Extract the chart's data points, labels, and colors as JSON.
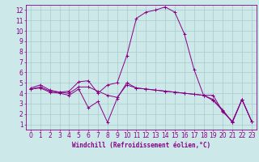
{
  "xlabel": "Windchill (Refroidissement éolien,°C)",
  "bg_color": "#cce8e8",
  "line_color": "#880088",
  "grid_color": "#aacccc",
  "xlim": [
    -0.5,
    23.5
  ],
  "ylim": [
    0.5,
    12.5
  ],
  "xticks": [
    0,
    1,
    2,
    3,
    4,
    5,
    6,
    7,
    8,
    9,
    10,
    11,
    12,
    13,
    14,
    15,
    16,
    17,
    18,
    19,
    20,
    21,
    22,
    23
  ],
  "yticks": [
    1,
    2,
    3,
    4,
    5,
    6,
    7,
    8,
    9,
    10,
    11,
    12
  ],
  "line1_x": [
    0,
    1,
    2,
    3,
    4,
    5,
    6,
    7,
    8,
    9,
    10,
    11,
    12,
    13,
    14,
    15,
    16,
    17,
    18,
    19,
    20,
    21,
    22,
    23
  ],
  "line1_y": [
    4.5,
    4.8,
    4.3,
    4.1,
    4.2,
    5.1,
    5.2,
    4.0,
    4.8,
    5.0,
    7.6,
    11.2,
    11.8,
    12.0,
    12.3,
    11.8,
    9.7,
    6.3,
    3.8,
    3.8,
    2.2,
    1.3,
    3.4,
    1.3
  ],
  "line2_x": [
    0,
    1,
    2,
    3,
    4,
    5,
    6,
    7,
    8,
    9,
    10,
    11,
    12,
    13,
    14,
    15,
    16,
    17,
    18,
    19,
    20,
    21,
    22,
    23
  ],
  "line2_y": [
    4.4,
    4.6,
    4.2,
    4.1,
    4.0,
    4.6,
    4.6,
    4.2,
    3.8,
    3.6,
    4.8,
    4.5,
    4.4,
    4.3,
    4.2,
    4.1,
    4.0,
    3.9,
    3.8,
    3.4,
    2.4,
    1.2,
    3.4,
    1.3
  ],
  "line3_x": [
    0,
    1,
    2,
    3,
    4,
    5,
    6,
    7,
    8,
    9,
    10,
    11,
    12,
    13,
    14,
    15,
    16,
    17,
    18,
    19,
    20,
    21,
    22,
    23
  ],
  "line3_y": [
    4.4,
    4.5,
    4.1,
    4.0,
    3.8,
    4.4,
    2.6,
    3.2,
    1.2,
    3.5,
    5.0,
    4.5,
    4.4,
    4.3,
    4.2,
    4.1,
    4.0,
    3.9,
    3.8,
    3.3,
    2.3,
    1.2,
    3.4,
    1.3
  ],
  "tick_fontsize": 5.5,
  "xlabel_fontsize": 5.5
}
